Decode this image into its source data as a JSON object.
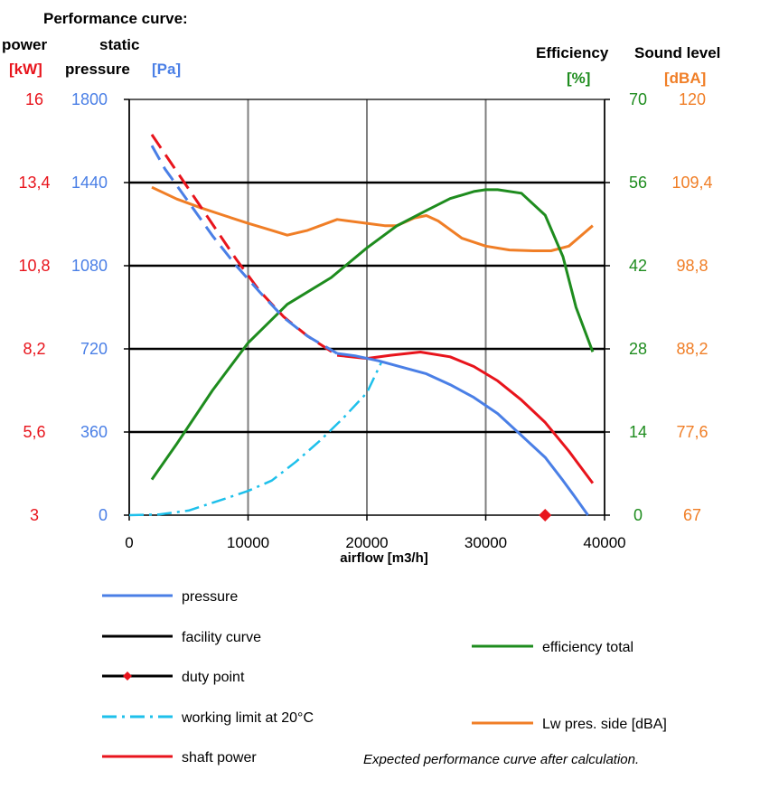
{
  "chart_data": {
    "type": "line",
    "title": "Performance curve:",
    "power_axis": {
      "label_line1": "power",
      "unit": "[kW]",
      "ticks": [
        "3",
        "5,6",
        "8,2",
        "10,8",
        "13,4",
        "16"
      ],
      "range": [
        3,
        16
      ]
    },
    "pressure_axis": {
      "label_line1": "static",
      "label_line2": "pressure",
      "unit": "[Pa]",
      "ticks": [
        "0",
        "360",
        "720",
        "1080",
        "1440",
        "1800"
      ],
      "range": [
        0,
        1800
      ]
    },
    "efficiency_axis": {
      "label": "Efficiency",
      "unit": "[%]",
      "ticks": [
        "0",
        "14",
        "28",
        "42",
        "56",
        "70"
      ],
      "range": [
        0,
        70
      ]
    },
    "sound_axis": {
      "label": "Sound level",
      "unit": "[dBA]",
      "ticks": [
        "67",
        "77,6",
        "88,2",
        "98,8",
        "109,4",
        "120"
      ],
      "range": [
        67,
        120
      ]
    },
    "x_axis": {
      "label": "airflow  [m3/h]",
      "ticks": [
        "0",
        "10000",
        "20000",
        "30000",
        "40000"
      ],
      "range": [
        0,
        40000
      ]
    },
    "grid": true,
    "series": [
      {
        "name": "pressure",
        "axis": "pressure",
        "color": "#4A7FE6",
        "dashed_until_x": 17500,
        "points": [
          [
            1900,
            1600
          ],
          [
            3000,
            1500
          ],
          [
            5000,
            1355
          ],
          [
            7000,
            1210
          ],
          [
            9000,
            1080
          ],
          [
            11000,
            965
          ],
          [
            13000,
            855
          ],
          [
            15000,
            775
          ],
          [
            17500,
            700
          ],
          [
            19000,
            690
          ],
          [
            21000,
            668
          ],
          [
            23000,
            640
          ],
          [
            25000,
            612
          ],
          [
            27000,
            565
          ],
          [
            29000,
            510
          ],
          [
            31000,
            440
          ],
          [
            33000,
            345
          ],
          [
            35000,
            250
          ],
          [
            36500,
            150
          ],
          [
            37500,
            80
          ],
          [
            38600,
            0
          ]
        ]
      },
      {
        "name": "facility curve",
        "axis": "pressure",
        "color": "#000000",
        "points": [
          [
            0,
            1440
          ],
          [
            40000,
            1440
          ]
        ]
      },
      {
        "name": "duty point",
        "axis": "power",
        "color": "#E8141C",
        "points": [
          [
            35000,
            3
          ]
        ]
      },
      {
        "name": "working limit at 20°C",
        "axis": "pressure",
        "color": "#1EC0EB",
        "points": [
          [
            0,
            0
          ],
          [
            2500,
            3
          ],
          [
            5000,
            20
          ],
          [
            8000,
            70
          ],
          [
            10000,
            105
          ],
          [
            12000,
            150
          ],
          [
            14000,
            230
          ],
          [
            16000,
            320
          ],
          [
            18000,
            420
          ],
          [
            20000,
            530
          ],
          [
            21200,
            660
          ]
        ]
      },
      {
        "name": "shaft power",
        "axis": "power",
        "color": "#E8141C",
        "dashed_until_x": 17500,
        "points": [
          [
            1900,
            14.9
          ],
          [
            3000,
            14.3
          ],
          [
            5000,
            13.2
          ],
          [
            7000,
            12.1
          ],
          [
            9000,
            11.0
          ],
          [
            11000,
            10.0
          ],
          [
            13000,
            9.2
          ],
          [
            15000,
            8.6
          ],
          [
            17500,
            8.0
          ],
          [
            20000,
            7.9
          ],
          [
            22000,
            8.0
          ],
          [
            24500,
            8.1
          ],
          [
            27000,
            7.95
          ],
          [
            29000,
            7.65
          ],
          [
            31000,
            7.2
          ],
          [
            33000,
            6.6
          ],
          [
            35000,
            5.9
          ],
          [
            37000,
            5.0
          ],
          [
            39000,
            4.0
          ]
        ]
      },
      {
        "name": "efficiency total",
        "axis": "efficiency",
        "color": "#1E8C1E",
        "points": [
          [
            1900,
            6
          ],
          [
            4000,
            12
          ],
          [
            7000,
            21
          ],
          [
            10000,
            29
          ],
          [
            13300,
            35.5
          ],
          [
            17000,
            40
          ],
          [
            20000,
            45
          ],
          [
            22500,
            48.7
          ],
          [
            25000,
            51.3
          ],
          [
            27000,
            53.3
          ],
          [
            29000,
            54.5
          ],
          [
            30000,
            54.8
          ],
          [
            31000,
            54.8
          ],
          [
            33000,
            54.2
          ],
          [
            35000,
            50.5
          ],
          [
            36500,
            43.5
          ],
          [
            37600,
            35
          ],
          [
            39000,
            27.5
          ]
        ]
      },
      {
        "name": "Lw pres. side [dBA]",
        "axis": "sound",
        "color": "#F07E26",
        "points": [
          [
            1900,
            108.8
          ],
          [
            4000,
            107.3
          ],
          [
            6000,
            106.2
          ],
          [
            8000,
            105.2
          ],
          [
            10000,
            104.2
          ],
          [
            12000,
            103.3
          ],
          [
            13300,
            102.7
          ],
          [
            15000,
            103.3
          ],
          [
            17500,
            104.7
          ],
          [
            20000,
            104.2
          ],
          [
            21500,
            103.9
          ],
          [
            22500,
            103.9
          ],
          [
            24000,
            104.9
          ],
          [
            25000,
            105.2
          ],
          [
            26000,
            104.5
          ],
          [
            28000,
            102.3
          ],
          [
            30000,
            101.3
          ],
          [
            32000,
            100.8
          ],
          [
            34000,
            100.7
          ],
          [
            35500,
            100.7
          ],
          [
            37000,
            101.3
          ],
          [
            39000,
            103.9
          ]
        ]
      }
    ]
  },
  "legend": [
    {
      "key": "pressure",
      "label": "pressure",
      "color": "#4A7FE6",
      "style": "solid"
    },
    {
      "key": "facility",
      "label": "facility curve",
      "color": "#000000",
      "style": "solid"
    },
    {
      "key": "duty",
      "label": "duty point",
      "color": "#000000",
      "marker_color": "#E8141C",
      "style": "marker"
    },
    {
      "key": "limit",
      "label": "working limit at 20°C",
      "color": "#1EC0EB",
      "style": "dashdot"
    },
    {
      "key": "power",
      "label": "shaft power",
      "color": "#E8141C",
      "style": "solid"
    },
    {
      "key": "efficiency",
      "label": "efficiency total",
      "color": "#1E8C1E",
      "style": "solid"
    },
    {
      "key": "sound",
      "label": "Lw pres. side [dBA]",
      "color": "#F07E26",
      "style": "solid"
    }
  ],
  "footnote": "Expected performance curve after calculation.",
  "colors": {
    "power_axis": "#E8141C",
    "pressure_axis": "#4A7FE6",
    "efficiency_axis": "#1E8C1E",
    "sound_axis": "#F07E26",
    "grid": "#000000"
  }
}
